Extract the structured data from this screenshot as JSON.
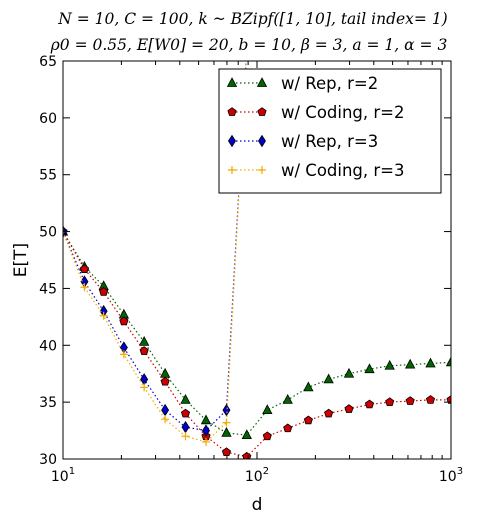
{
  "chart_data": {
    "type": "line",
    "title_line1": "N = 10, C = 100, k ~ BZipf([1, 10], tail index= 1)",
    "title_line2": "ρ0 = 0.55, E[W0] = 20, b = 10, β = 3, a = 1, α = 3",
    "xlabel": "d",
    "ylabel": "E[T]",
    "xscale": "log",
    "xlim": [
      10,
      1000
    ],
    "ylim": [
      30,
      65
    ],
    "x_tick_labels": [
      "10^1",
      "10^2",
      "10^3"
    ],
    "x_tick_values": [
      10,
      100,
      1000
    ],
    "y_tick_values": [
      30,
      35,
      40,
      45,
      50,
      55,
      60,
      65
    ],
    "grid": false,
    "legend_position": "top-right",
    "series": [
      {
        "name": "w/ Rep, r=2",
        "color": "#006400",
        "marker": "triangle",
        "x": [
          10,
          12.9,
          16.2,
          20.6,
          26.2,
          33.6,
          42.8,
          54.6,
          69.6,
          88.6,
          113,
          144,
          184,
          234,
          298,
          380,
          483,
          616,
          784,
          1000
        ],
        "y": [
          50.0,
          46.9,
          45.2,
          42.7,
          40.3,
          37.5,
          35.2,
          33.4,
          32.3,
          32.1,
          34.3,
          35.2,
          36.3,
          37.0,
          37.5,
          37.9,
          38.2,
          38.3,
          38.4,
          38.5
        ]
      },
      {
        "name": "w/ Coding, r=2",
        "color": "#cc0000",
        "marker": "pentagon",
        "x": [
          10,
          12.9,
          16.2,
          20.6,
          26.2,
          33.6,
          42.8,
          54.6,
          69.6,
          88.6,
          113,
          144,
          184,
          234,
          298,
          380,
          483,
          616,
          784,
          1000
        ],
        "y": [
          50.0,
          46.7,
          44.7,
          42.1,
          39.5,
          36.8,
          34.0,
          32.0,
          30.6,
          30.2,
          32.0,
          32.7,
          33.4,
          34.0,
          34.4,
          34.8,
          35.0,
          35.1,
          35.2,
          35.2
        ]
      },
      {
        "name": "w/ Rep, r=3",
        "color": "#0000cc",
        "marker": "diamond",
        "x": [
          10,
          12.9,
          16.2,
          20.6,
          26.2,
          33.6,
          42.8,
          54.6,
          69.6,
          88.6
        ],
        "y": [
          50.0,
          45.6,
          43.0,
          39.8,
          37.0,
          34.3,
          32.8,
          32.5,
          34.3,
          66
        ]
      },
      {
        "name": "w/ Coding, r=3",
        "color": "#f2a900",
        "marker": "plus",
        "x": [
          10,
          12.9,
          16.2,
          20.6,
          26.2,
          33.6,
          42.8,
          54.6,
          69.6,
          88.6
        ],
        "y": [
          50.0,
          45.1,
          42.6,
          39.2,
          36.3,
          33.5,
          32.0,
          31.5,
          33.2,
          66
        ]
      }
    ]
  }
}
